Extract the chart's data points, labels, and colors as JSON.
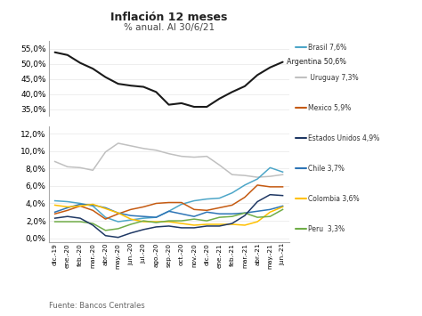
{
  "title": "Inflación 12 meses",
  "subtitle": "% anual. Al 30/6/21",
  "source": "Fuente: Bancos Centrales",
  "x_labels": [
    "dic.-19",
    "ene.-20",
    "feb.-20",
    "mar.-20",
    "abr.-20",
    "may.-20",
    "jun.-20",
    "jul.-20",
    "ago.-20",
    "sep.-20",
    "oct.-20",
    "nov.-20",
    "dic.-20",
    "ene.-21",
    "feb.-21",
    "mar.-21",
    "abr.-21",
    "may.-21",
    "jun.-21"
  ],
  "argentina": [
    53.8,
    52.9,
    50.3,
    48.4,
    45.6,
    43.4,
    42.8,
    42.4,
    40.7,
    36.5,
    37.0,
    35.8,
    35.8,
    38.5,
    40.7,
    42.6,
    46.3,
    48.8,
    50.6
  ],
  "chile": [
    3.0,
    3.5,
    3.9,
    3.8,
    3.5,
    2.9,
    2.6,
    2.5,
    2.4,
    3.1,
    2.8,
    2.5,
    3.0,
    2.8,
    2.8,
    2.9,
    3.1,
    3.3,
    3.7
  ],
  "brasil": [
    4.3,
    4.2,
    4.0,
    3.7,
    2.4,
    1.9,
    2.1,
    2.3,
    2.4,
    3.1,
    3.9,
    4.3,
    4.5,
    4.6,
    5.2,
    6.1,
    6.8,
    8.1,
    7.6
  ],
  "mexico": [
    2.8,
    3.2,
    3.7,
    3.2,
    2.2,
    2.8,
    3.3,
    3.6,
    4.0,
    4.1,
    4.1,
    3.3,
    3.2,
    3.5,
    3.8,
    4.7,
    6.1,
    5.9,
    5.9
  ],
  "colombia": [
    3.8,
    3.6,
    3.7,
    3.9,
    3.4,
    2.9,
    2.2,
    1.9,
    1.9,
    1.9,
    1.7,
    1.5,
    1.6,
    1.6,
    1.6,
    1.5,
    1.9,
    3.0,
    3.6
  ],
  "peru": [
    1.9,
    1.9,
    1.9,
    1.7,
    0.9,
    1.1,
    1.6,
    2.0,
    1.8,
    2.0,
    2.0,
    2.2,
    2.0,
    2.4,
    2.5,
    2.9,
    2.4,
    2.5,
    3.3
  ],
  "uruguay": [
    8.8,
    8.2,
    8.1,
    7.8,
    9.9,
    10.9,
    10.6,
    10.3,
    10.1,
    9.7,
    9.4,
    9.3,
    9.4,
    8.4,
    7.3,
    7.2,
    7.0,
    7.1,
    7.3
  ],
  "eeuu": [
    2.3,
    2.5,
    2.3,
    1.5,
    0.3,
    0.1,
    0.6,
    1.0,
    1.3,
    1.4,
    1.2,
    1.2,
    1.4,
    1.4,
    1.7,
    2.6,
    4.2,
    5.0,
    4.9
  ],
  "col_argentina": "#1a1a1a",
  "col_brasil": "#4da6c8",
  "col_uruguay": "#c0c0c0",
  "col_mexico": "#c55a11",
  "col_eeuu": "#1f3864",
  "col_chile": "#2e75b6",
  "col_colombia": "#ffc000",
  "col_peru": "#70ad47",
  "background": "#ffffff",
  "legend": [
    {
      "label": "Brasil 7,6%",
      "color": "#4da6c8"
    },
    {
      "label": " Uruguay 7,3%",
      "color": "#c0c0c0"
    },
    {
      "label": "Mexico 5,9%",
      "color": "#c55a11"
    },
    {
      "label": "Estados Unidos 4,9%",
      "color": "#1f3864"
    },
    {
      "label": "Chile 3,7%",
      "color": "#2e75b6"
    },
    {
      "label": "Colombia 3,6%",
      "color": "#ffc000"
    },
    {
      "label": "Peru  3,3%",
      "color": "#70ad47"
    }
  ]
}
